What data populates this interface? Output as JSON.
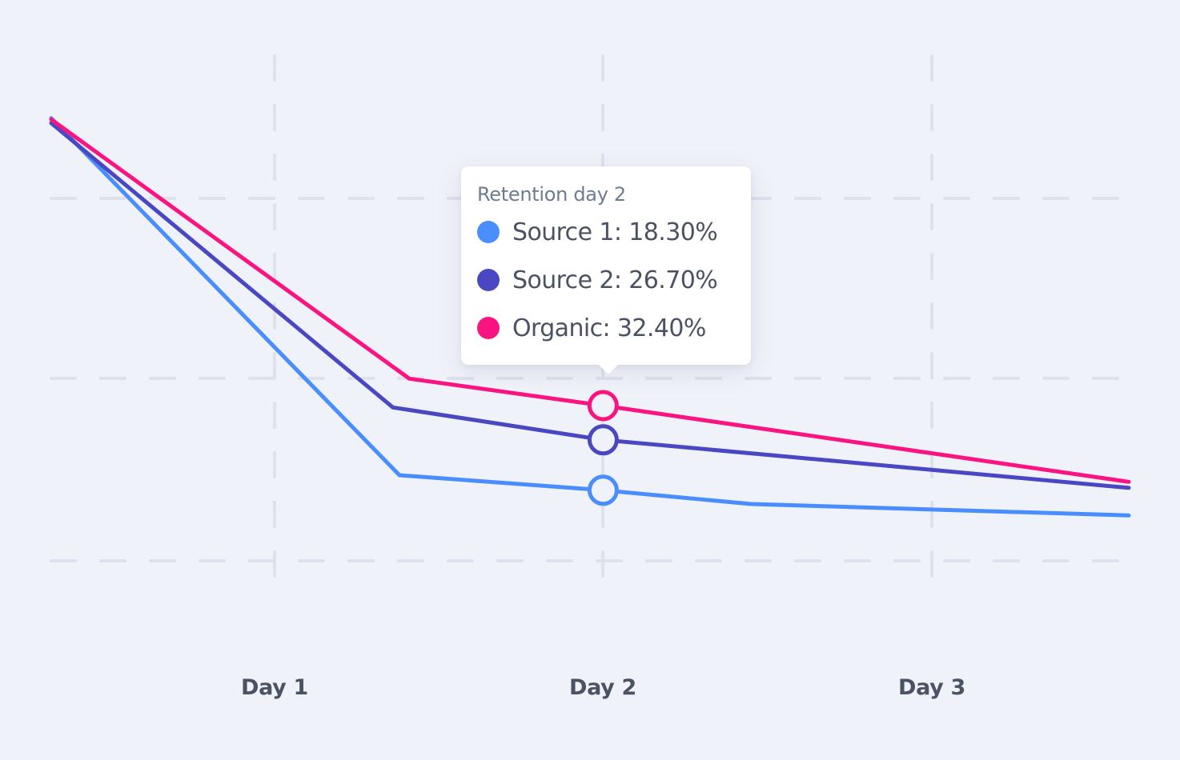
{
  "colors": {
    "background": "#eff2f8",
    "grid": "#dde1ec",
    "text": "#4b5264",
    "tooltip_title": "#6e7c90"
  },
  "tooltip": {
    "title": "Retention day 2",
    "rows": [
      {
        "series": "Source 1",
        "text": "Source 1: 18.30%",
        "color": "#4a8dfc"
      },
      {
        "series": "Source 2",
        "text": "Source 2: 26.70%",
        "color": "#4a47c2"
      },
      {
        "series": "Organic",
        "text": "Organic: 32.40%",
        "color": "#fa1482"
      }
    ]
  },
  "chart_data": {
    "type": "line",
    "title": "",
    "xlabel": "",
    "ylabel": "",
    "x_ticks": [
      {
        "value": 1,
        "label": "Day 1"
      },
      {
        "value": 2,
        "label": "Day 2"
      },
      {
        "value": 3,
        "label": "Day 3"
      }
    ],
    "xlim": [
      0.32,
      3.6
    ],
    "ylim": [
      -6.8,
      93.2
    ],
    "y_gridlines": [
      67,
      37,
      6.6
    ],
    "grid": true,
    "grid_style": "dashed",
    "legend": "tooltip",
    "highlight_x": 2,
    "series": [
      {
        "name": "Source 1",
        "color": "#4a8dfc",
        "points": [
          [
            0.32,
            80.3
          ],
          [
            1.38,
            20.8
          ],
          [
            2,
            18.3
          ],
          [
            2.45,
            16.0
          ],
          [
            3.6,
            14.1
          ]
        ]
      },
      {
        "name": "Source 2",
        "color": "#4a47c2",
        "points": [
          [
            0.32,
            79.5
          ],
          [
            1.36,
            32.1
          ],
          [
            2,
            26.7
          ],
          [
            3.6,
            18.7
          ]
        ]
      },
      {
        "name": "Organic",
        "color": "#fa1482",
        "points": [
          [
            0.32,
            80.1
          ],
          [
            1.41,
            36.9
          ],
          [
            2,
            32.4
          ],
          [
            3.6,
            19.7
          ]
        ]
      }
    ]
  }
}
